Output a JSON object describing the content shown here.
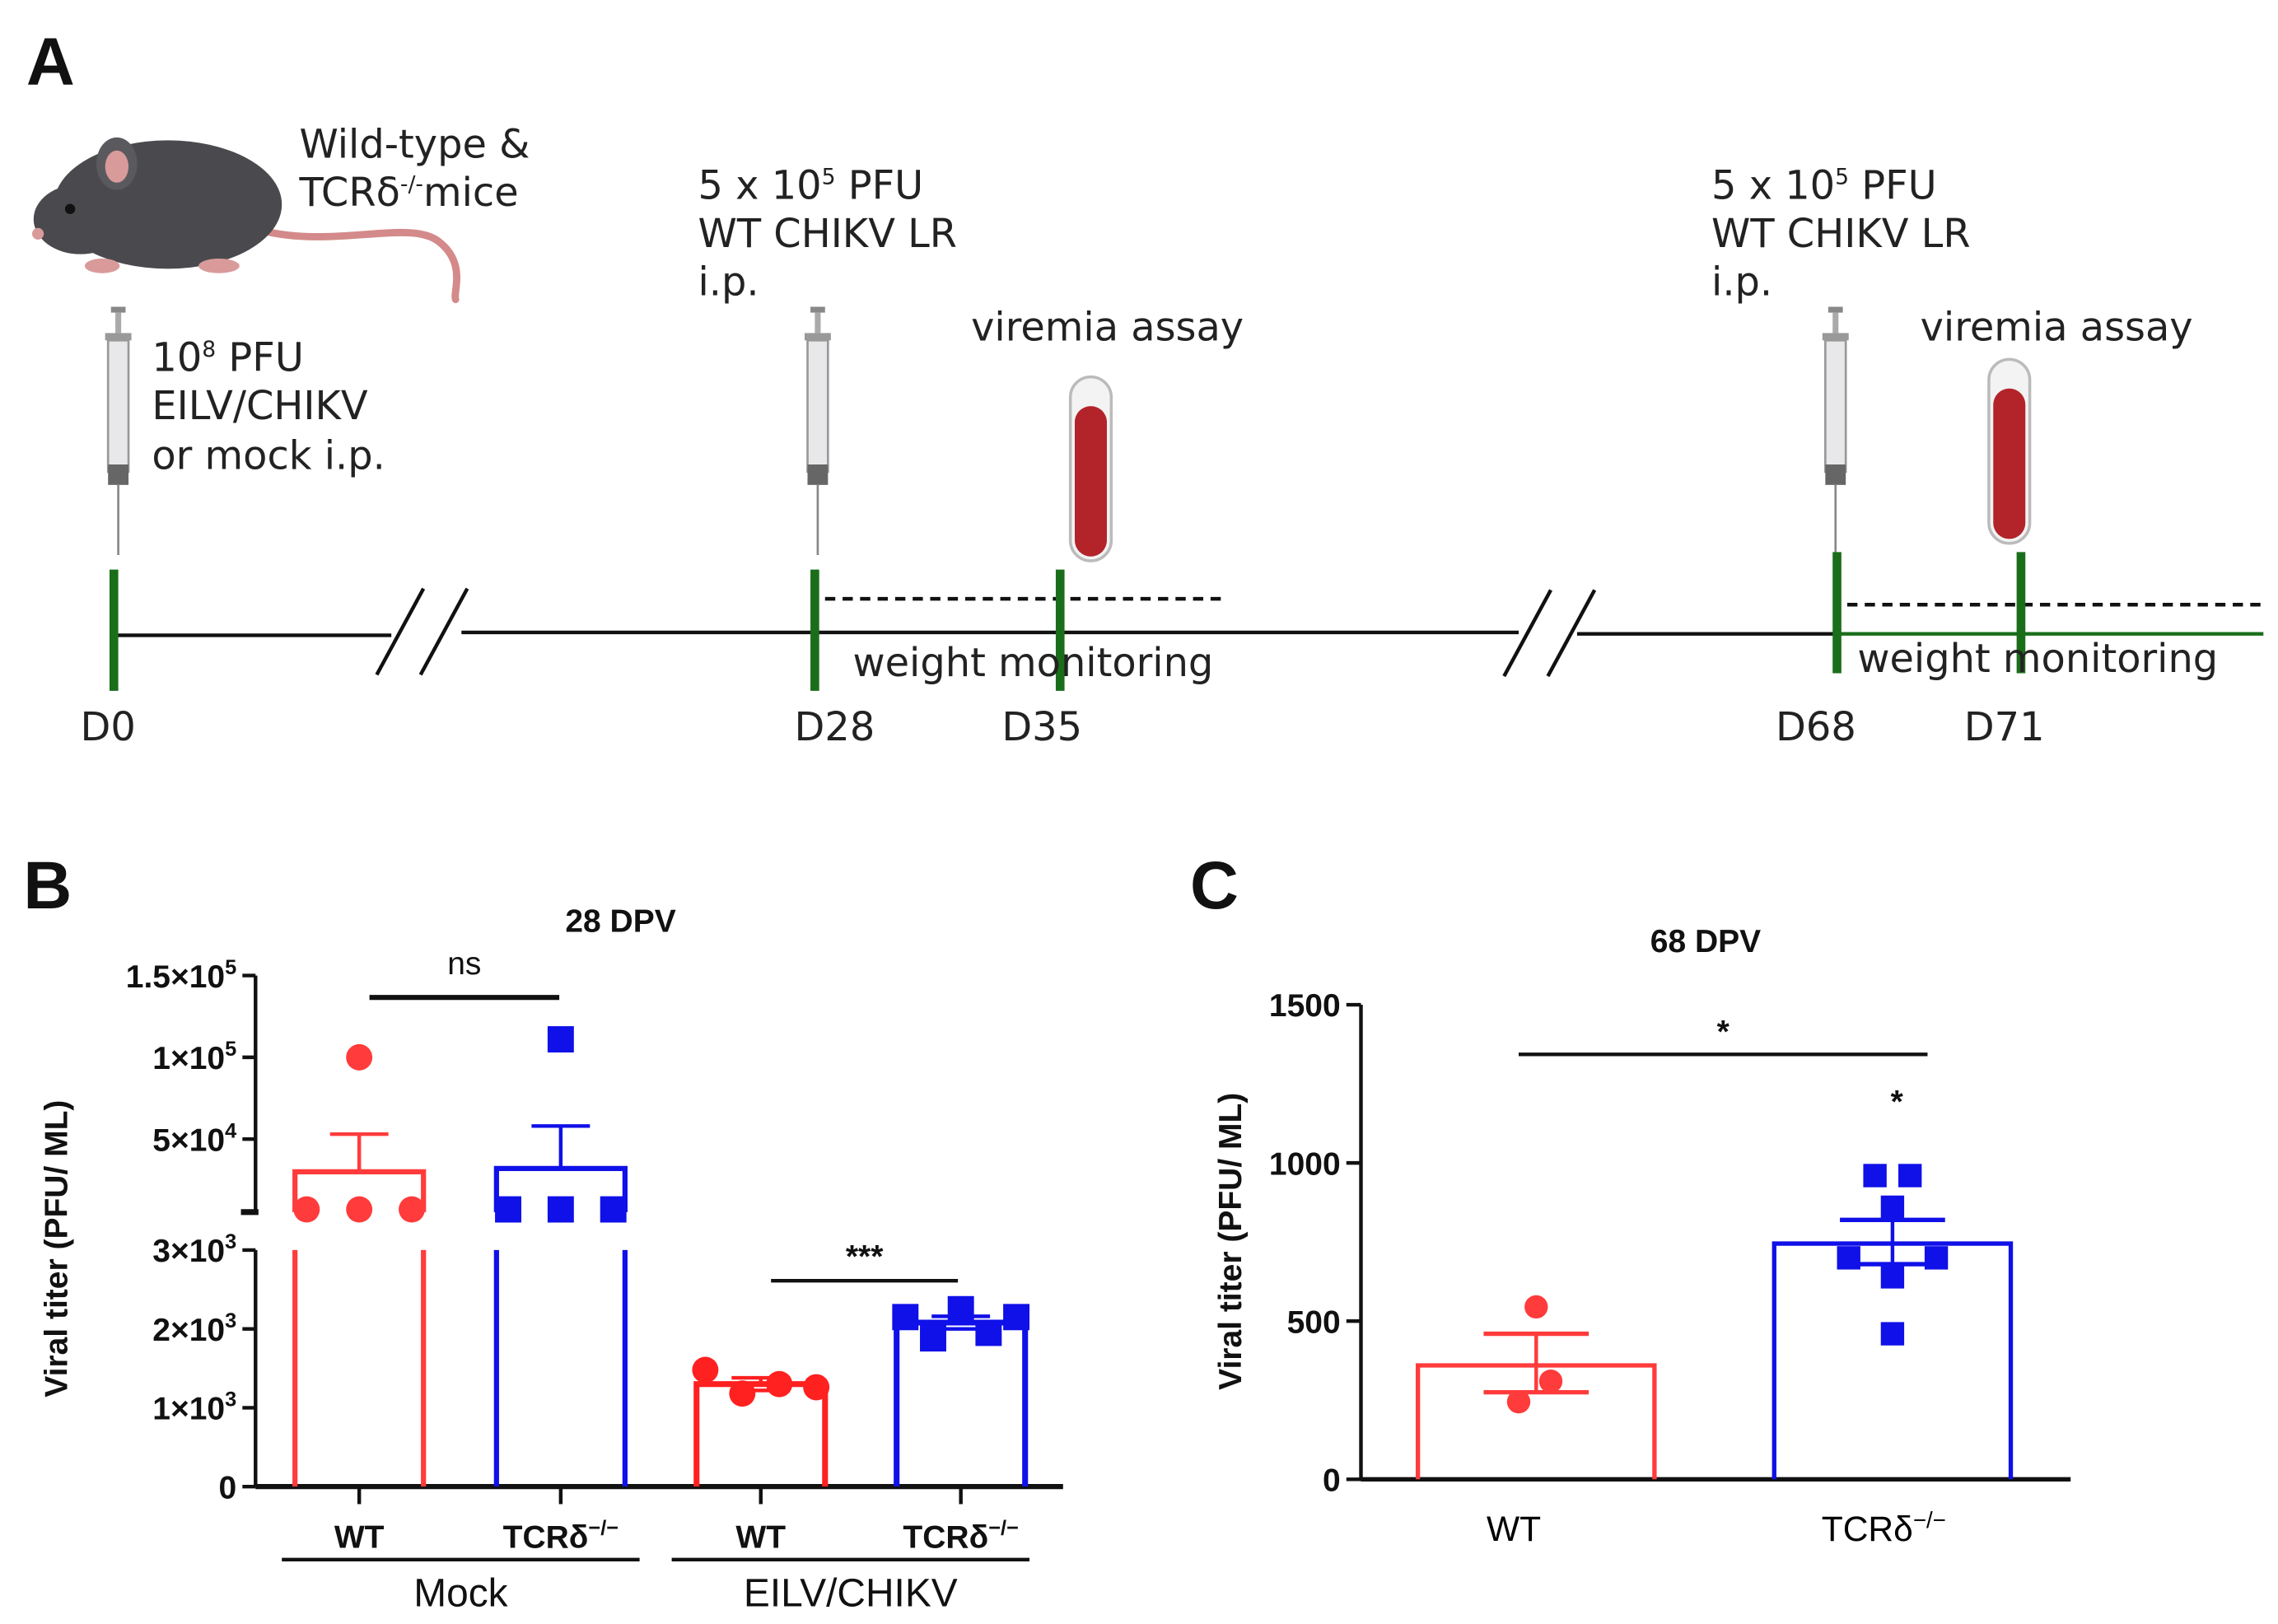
{
  "panel_a": {
    "label": "A",
    "mice_line1": "Wild-type &",
    "mice_line2_pre": "TCRδ",
    "mice_line2_sup": "-/-",
    "mice_line2_post": "mice",
    "prime_line1_pre": "10",
    "prime_line1_sup": "8",
    "prime_line1_post": " PFU",
    "prime_line2": "EILV/CHIKV",
    "prime_line3": "or mock i.p.",
    "challenge1_line1_pre": "5 x 10",
    "challenge1_line1_sup": "5",
    "challenge1_line1_post": " PFU",
    "challenge1_line2": "WT CHIKV LR",
    "challenge1_line3": "i.p.",
    "challenge2_line1_pre": "5 x 10",
    "challenge2_line1_sup": "5",
    "challenge2_line1_post": " PFU",
    "challenge2_line2": "WT CHIKV LR",
    "challenge2_line3": "i.p.",
    "viremia1": "viremia assay",
    "viremia2": "viremia assay",
    "weight1": "weight monitoring",
    "weight2": "weight monitoring",
    "days": [
      "D0",
      "D28",
      "D35",
      "D68",
      "D71"
    ],
    "timeline_color": "#1a6e1a",
    "blood_color": "#b3242a"
  },
  "chart_data": [
    {
      "panel": "B",
      "type": "bar",
      "title": "28 DPV",
      "ylabel": "Viral titer (PFU/ ML)",
      "y_axis": "broken: 0–3000 lower segment, ~5000–150000 upper segment",
      "ytick_labels": [
        {
          "value": 0,
          "base": "0",
          "exp": ""
        },
        {
          "value": 1000,
          "base": "1×10",
          "exp": "3"
        },
        {
          "value": 2000,
          "base": "2×10",
          "exp": "3"
        },
        {
          "value": 3000,
          "base": "3×10",
          "exp": "3"
        },
        {
          "value": 50000,
          "base": "5×10",
          "exp": "4"
        },
        {
          "value": 100000,
          "base": "1×10",
          "exp": "5"
        },
        {
          "value": 150000,
          "base": "1.5×10",
          "exp": "5"
        }
      ],
      "categories": [
        {
          "label": "WT",
          "sup": "",
          "group": "Mock",
          "color": "#ff3b3b",
          "mean": 30000,
          "sem_top": 53000,
          "points": [
            100000,
            7000,
            7000,
            7000
          ],
          "marker": "circle"
        },
        {
          "label": "TCRδ",
          "sup": "−/−",
          "group": "Mock",
          "color": "#1010e8",
          "mean": 32000,
          "sem_top": 58000,
          "points": [
            111000,
            7000,
            7000,
            7000
          ],
          "marker": "square"
        },
        {
          "label": "WT",
          "sup": "",
          "group": "EILV/CHIKV",
          "color": "#ff2020",
          "mean": 1300,
          "sem_top": 1380,
          "sem_bottom": 1220,
          "points": [
            1480,
            1180,
            1300,
            1260
          ],
          "marker": "circle"
        },
        {
          "label": "TCRδ",
          "sup": "−/−",
          "group": "EILV/CHIKV",
          "color": "#1010e8",
          "mean": 2080,
          "sem_top": 2160,
          "sem_bottom": 2000,
          "points": [
            2150,
            1880,
            2250,
            1950,
            2150
          ],
          "marker": "square"
        }
      ],
      "groups": [
        "Mock",
        "EILV/CHIKV"
      ],
      "annotations": [
        {
          "text": "ns",
          "between": [
            0,
            1
          ]
        },
        {
          "text": "***",
          "between": [
            2,
            3
          ]
        }
      ]
    },
    {
      "panel": "C",
      "type": "bar",
      "title": "68 DPV",
      "ylabel": "Viral titer (PFU/ ML)",
      "ylim": [
        0,
        1500
      ],
      "yticks": [
        0,
        500,
        1000,
        1500
      ],
      "categories": [
        {
          "label": "WT",
          "sup": "",
          "color": "#ff3b3b",
          "mean": 360,
          "sem_top": 460,
          "sem_bottom": 275,
          "points": [
            545,
            310,
            245
          ],
          "marker": "circle"
        },
        {
          "label": "TCRδ",
          "sup": "−/−",
          "color": "#1010e8",
          "mean": 745,
          "sem_top": 820,
          "sem_bottom": 680,
          "points": [
            960,
            960,
            860,
            700,
            700,
            640,
            460
          ],
          "marker": "square"
        }
      ],
      "annotations": [
        {
          "text": "*",
          "between": [
            0,
            1
          ]
        },
        {
          "text": "*",
          "above": 1
        }
      ]
    }
  ]
}
